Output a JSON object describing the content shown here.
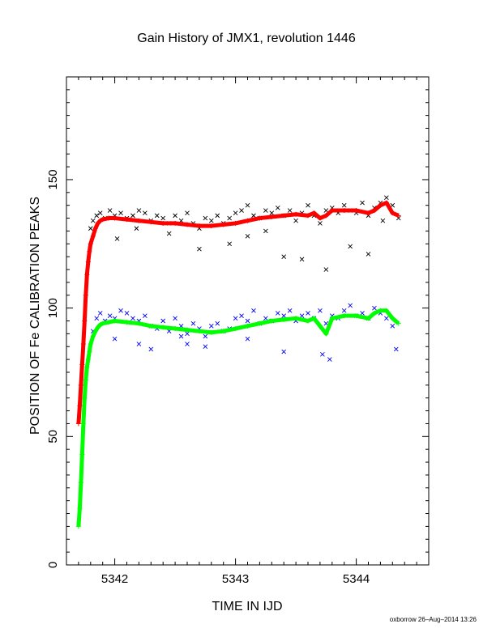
{
  "chart_data": {
    "type": "scatter",
    "title": "Gain History of JMX1, revolution 1446",
    "xlabel": "TIME IN IJD",
    "ylabel": "POSITION OF Fe CALIBRATION PEAKS",
    "xlim": [
      5341.6,
      5344.6
    ],
    "ylim": [
      0,
      190
    ],
    "x_ticks": [
      5342,
      5343,
      5344
    ],
    "y_ticks": [
      0,
      50,
      100,
      150
    ],
    "grid": false,
    "legend": "none",
    "series": [
      {
        "color": "#000000",
        "marker": "x",
        "x": [
          5341.8,
          5341.82,
          5341.85,
          5341.88,
          5341.92,
          5341.96,
          5342.0,
          5342.05,
          5342.1,
          5342.15,
          5342.2,
          5342.25,
          5342.3,
          5342.35,
          5342.4,
          5342.45,
          5342.5,
          5342.55,
          5342.6,
          5342.65,
          5342.7,
          5342.75,
          5342.8,
          5342.85,
          5342.9,
          5342.95,
          5343.0,
          5343.05,
          5343.1,
          5343.15,
          5343.2,
          5343.25,
          5343.3,
          5343.35,
          5343.4,
          5343.45,
          5343.5,
          5343.55,
          5343.6,
          5343.65,
          5343.7,
          5343.75,
          5343.8,
          5343.85,
          5343.9,
          5343.95,
          5344.0,
          5344.05,
          5344.1,
          5344.15,
          5344.2,
          5344.25,
          5344.3,
          5344.35,
          5342.02,
          5342.18,
          5342.45,
          5342.7,
          5342.95,
          5343.1,
          5343.25,
          5343.4,
          5343.55,
          5343.75,
          5343.95,
          5344.1,
          5344.22
        ],
        "y": [
          131,
          134,
          136,
          137,
          135,
          138,
          136,
          137,
          135,
          136,
          138,
          137,
          134,
          136,
          135,
          133,
          136,
          134,
          137,
          133,
          131,
          135,
          134,
          136,
          133,
          135,
          137,
          138,
          140,
          136,
          135,
          138,
          137,
          139,
          136,
          138,
          134,
          137,
          140,
          136,
          133,
          138,
          139,
          137,
          140,
          138,
          137,
          141,
          136,
          139,
          141,
          143,
          140,
          135,
          127,
          131,
          129,
          123,
          125,
          128,
          130,
          120,
          119,
          115,
          124,
          121,
          134
        ]
      },
      {
        "color": "#0000ff",
        "marker": "x",
        "x": [
          5341.82,
          5341.85,
          5341.88,
          5341.92,
          5341.96,
          5342.0,
          5342.05,
          5342.1,
          5342.15,
          5342.2,
          5342.25,
          5342.3,
          5342.35,
          5342.4,
          5342.45,
          5342.5,
          5342.55,
          5342.6,
          5342.65,
          5342.7,
          5342.75,
          5342.8,
          5342.85,
          5342.9,
          5342.95,
          5343.0,
          5343.05,
          5343.1,
          5343.15,
          5343.2,
          5343.25,
          5343.3,
          5343.35,
          5343.4,
          5343.45,
          5343.5,
          5343.55,
          5343.6,
          5343.65,
          5343.7,
          5343.75,
          5343.8,
          5343.85,
          5343.9,
          5343.95,
          5344.0,
          5344.05,
          5344.1,
          5344.15,
          5344.2,
          5344.25,
          5344.3,
          5342.0,
          5342.2,
          5342.3,
          5342.55,
          5342.6,
          5342.75,
          5343.1,
          5343.4,
          5343.72,
          5343.78,
          5344.33
        ],
        "y": [
          91,
          96,
          98,
          95,
          97,
          96,
          99,
          98,
          96,
          95,
          97,
          93,
          92,
          95,
          91,
          96,
          93,
          90,
          94,
          92,
          89,
          93,
          94,
          91,
          92,
          96,
          97,
          95,
          99,
          94,
          96,
          95,
          98,
          97,
          99,
          95,
          97,
          98,
          96,
          99,
          94,
          97,
          96,
          99,
          101,
          97,
          98,
          96,
          100,
          98,
          96,
          93,
          88,
          86,
          84,
          89,
          86,
          85,
          88,
          83,
          82,
          80,
          84
        ]
      },
      {
        "color": "#ff0000",
        "marker": "+",
        "x": [
          5341.7,
          5341.71,
          5341.72,
          5341.73,
          5341.74,
          5341.75,
          5341.76,
          5341.77,
          5341.78,
          5341.79,
          5341.8,
          5341.82,
          5341.84,
          5341.86,
          5341.88,
          5341.9,
          5341.95,
          5342.0,
          5342.1,
          5342.2,
          5342.3,
          5342.4,
          5342.5,
          5342.6,
          5342.7,
          5342.8,
          5342.9,
          5343.0,
          5343.1,
          5343.2,
          5343.3,
          5343.4,
          5343.5,
          5343.6,
          5343.65,
          5343.7,
          5343.75,
          5343.8,
          5343.9,
          5344.0,
          5344.1,
          5344.15,
          5344.2,
          5344.25,
          5344.3,
          5344.35
        ],
        "y": [
          55,
          62,
          70,
          78,
          86,
          95,
          105,
          113,
          118,
          122,
          125,
          128,
          131,
          133,
          134,
          134.5,
          135,
          135,
          134.5,
          134,
          133.5,
          133,
          133,
          132.5,
          132,
          132,
          132.5,
          133,
          134,
          135,
          135.5,
          136,
          136.5,
          136,
          137,
          135,
          136,
          138,
          138,
          138,
          137,
          138,
          140,
          141,
          137,
          136
        ]
      },
      {
        "color": "#00ff00",
        "marker": "+",
        "x": [
          5341.7,
          5341.71,
          5341.72,
          5341.73,
          5341.74,
          5341.75,
          5341.76,
          5341.77,
          5341.78,
          5341.79,
          5341.8,
          5341.82,
          5341.84,
          5341.86,
          5341.88,
          5341.9,
          5341.95,
          5342.0,
          5342.1,
          5342.2,
          5342.3,
          5342.4,
          5342.5,
          5342.6,
          5342.7,
          5342.8,
          5342.9,
          5343.0,
          5343.1,
          5343.2,
          5343.3,
          5343.4,
          5343.5,
          5343.6,
          5343.65,
          5343.7,
          5343.75,
          5343.8,
          5343.9,
          5344.0,
          5344.1,
          5344.15,
          5344.2,
          5344.25,
          5344.3,
          5344.35
        ],
        "y": [
          15,
          22,
          32,
          43,
          55,
          65,
          72,
          77,
          80,
          83,
          86,
          89,
          91,
          92.5,
          93.5,
          94,
          94.5,
          95,
          94.5,
          94,
          93,
          92.5,
          92,
          91.5,
          91,
          90.5,
          91,
          92,
          93,
          94,
          95,
          95.5,
          96,
          95,
          96,
          93,
          90,
          96,
          97,
          97,
          96,
          98,
          99,
          99,
          96,
          94
        ]
      }
    ],
    "footer": "oxborrow 26–Aug–2014 13:26"
  }
}
